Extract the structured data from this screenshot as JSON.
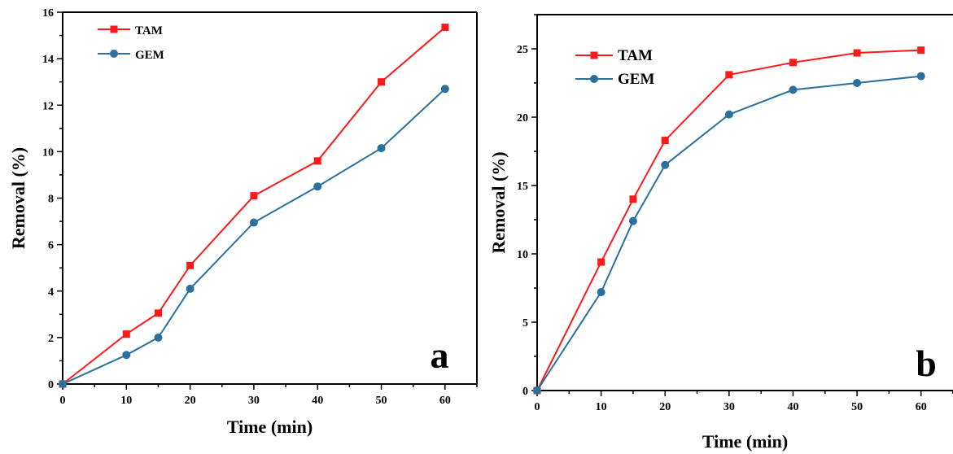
{
  "chart_data": [
    {
      "type": "line",
      "panel_label": "a",
      "xlabel": "Time (min)",
      "ylabel": "Removal (%)",
      "xlim": [
        0,
        65
      ],
      "ylim": [
        0,
        16
      ],
      "xticks": [
        0,
        10,
        20,
        30,
        40,
        50,
        60
      ],
      "yticks": [
        0,
        2,
        4,
        6,
        8,
        10,
        12,
        14,
        16
      ],
      "grid": false,
      "legend_position": "top-left",
      "x": [
        0,
        10,
        15,
        20,
        30,
        40,
        50,
        60
      ],
      "series": [
        {
          "name": "TAM",
          "color": "#ff1a1a",
          "marker": "square",
          "values": [
            0,
            2.15,
            3.05,
            5.1,
            8.1,
            9.6,
            13.0,
            15.35
          ]
        },
        {
          "name": "GEM",
          "color": "#2a6f9e",
          "marker": "circle",
          "values": [
            0,
            1.25,
            2.0,
            4.1,
            6.95,
            8.5,
            10.15,
            12.7
          ]
        }
      ]
    },
    {
      "type": "line",
      "panel_label": "b",
      "xlabel": "Time (min)",
      "ylabel": "Removal (%)",
      "xlim": [
        0,
        65
      ],
      "ylim": [
        0,
        27.5
      ],
      "xticks": [
        0,
        10,
        20,
        30,
        40,
        50,
        60
      ],
      "yticks": [
        0,
        5,
        10,
        15,
        20,
        25
      ],
      "grid": false,
      "legend_position": "top-left",
      "x": [
        0,
        10,
        15,
        20,
        30,
        40,
        50,
        60
      ],
      "series": [
        {
          "name": "TAM",
          "color": "#ff1a1a",
          "marker": "square",
          "values": [
            0,
            9.4,
            14.0,
            18.3,
            23.1,
            24.0,
            24.7,
            24.9
          ]
        },
        {
          "name": "GEM",
          "color": "#2a6f9e",
          "marker": "circle",
          "values": [
            0,
            7.2,
            12.4,
            16.5,
            20.2,
            22.0,
            22.5,
            23.0
          ]
        }
      ]
    }
  ]
}
